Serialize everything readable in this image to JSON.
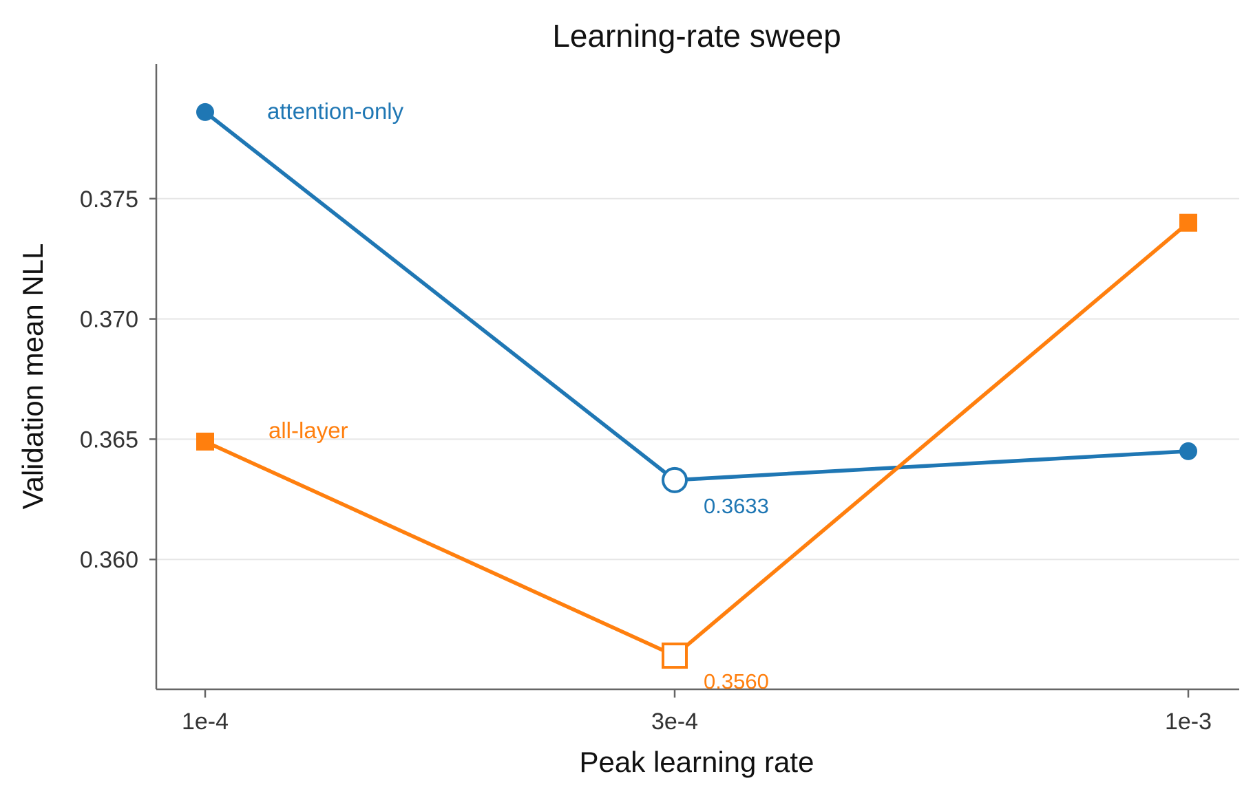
{
  "chart_data": {
    "type": "line",
    "title": "Learning-rate sweep",
    "xlabel": "Peak learning rate",
    "ylabel": "Validation mean NLL",
    "categories": [
      "1e-4",
      "3e-4",
      "1e-3"
    ],
    "ylim": [
      0.3546,
      0.3806
    ],
    "yticks": [
      0.36,
      0.365,
      0.37,
      0.375
    ],
    "ytick_labels": [
      "0.360",
      "0.365",
      "0.370",
      "0.375"
    ],
    "grid": "horizontal",
    "series": [
      {
        "name": "attention-only",
        "values": [
          0.3786,
          0.3633,
          0.3645
        ],
        "color": "#1f77b4",
        "marker": "circle",
        "best": {
          "index": 1,
          "label": "0.3633"
        }
      },
      {
        "name": "all-layer",
        "values": [
          0.3649,
          0.356,
          0.374
        ],
        "color": "#ff7f0e",
        "marker": "square",
        "best": {
          "index": 1,
          "label": "0.3560"
        }
      }
    ]
  }
}
